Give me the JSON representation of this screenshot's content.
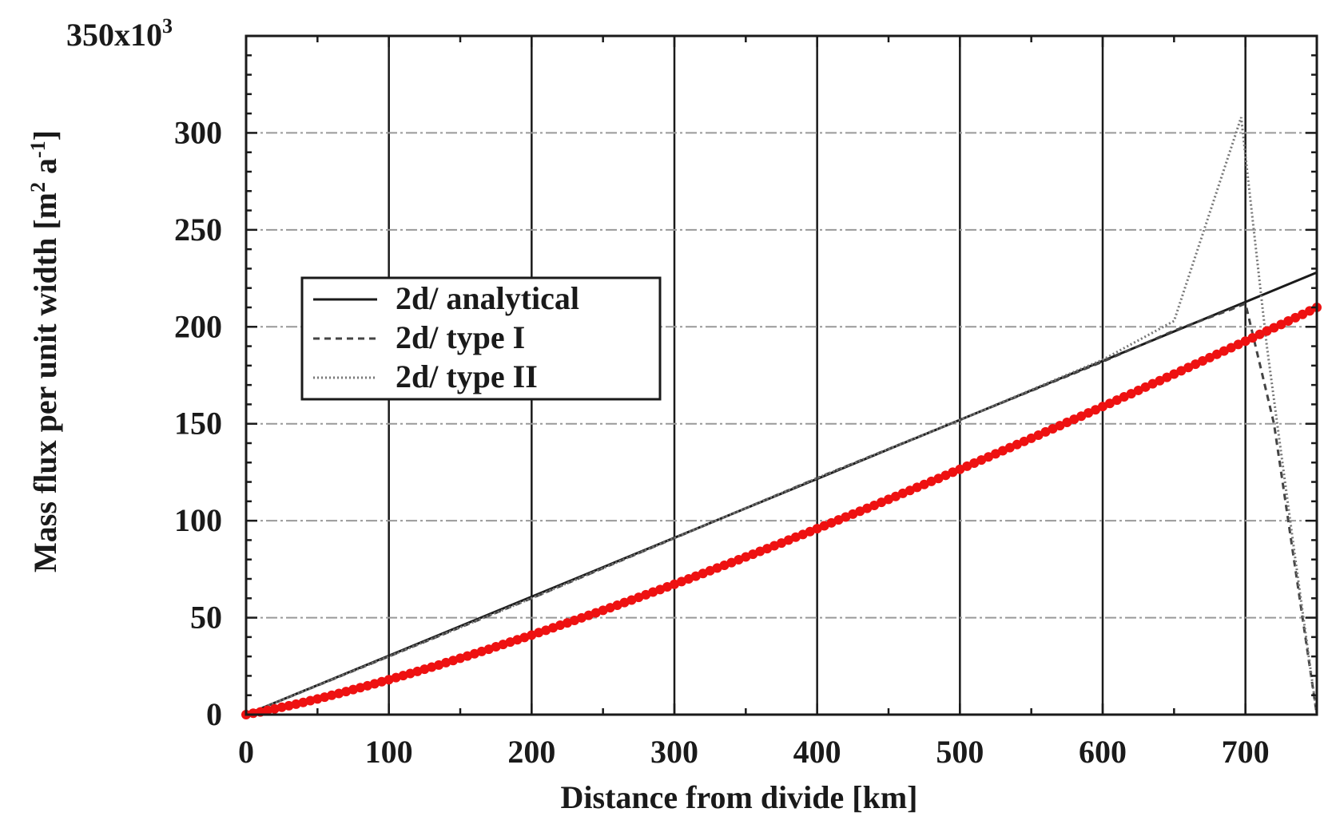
{
  "chart_data": {
    "type": "line",
    "title": "",
    "xlabel": "Distance from divide   [km]",
    "ylabel": "Mass flux per unit width  [m",
    "ylabel_sup1": "2",
    "ylabel_mid": " a",
    "ylabel_sup2": "-1",
    "ylabel_end": "]",
    "y_top_label": "350x10",
    "y_top_label_sup": "3",
    "xlim": [
      0,
      750
    ],
    "ylim": [
      0,
      350000
    ],
    "xticks": [
      0,
      100,
      200,
      300,
      400,
      500,
      600,
      700
    ],
    "yticks": [
      0,
      50,
      100,
      150,
      200,
      250,
      300
    ],
    "grid": true,
    "legend_position": "upper-left",
    "series": [
      {
        "name": "2d/ analytical",
        "style": "solid",
        "color": "#1a1a1a",
        "x": [
          0,
          750
        ],
        "y": [
          0,
          228000
        ]
      },
      {
        "name": "2d/ type I",
        "style": "dashed",
        "color": "#444444",
        "x": [
          0,
          100,
          200,
          300,
          400,
          500,
          600,
          650,
          690,
          700,
          720,
          740,
          750
        ],
        "y": [
          0,
          30000,
          60000,
          91000,
          122000,
          152000,
          182000,
          198000,
          209000,
          212000,
          150000,
          50000,
          0
        ]
      },
      {
        "name": "2d/ type II",
        "style": "dotted",
        "color": "#777777",
        "x": [
          0,
          100,
          200,
          300,
          400,
          500,
          600,
          650,
          697,
          715,
          735,
          750
        ],
        "y": [
          0,
          30000,
          60000,
          91000,
          122000,
          152000,
          183000,
          203000,
          308000,
          190000,
          80000,
          0
        ]
      },
      {
        "name": "",
        "style": "markers",
        "color": "#ee1111",
        "x": [
          0,
          5,
          10,
          15,
          20,
          25,
          30,
          35,
          40,
          45,
          50,
          55,
          60,
          65,
          70,
          75,
          80,
          85,
          90,
          95,
          100,
          105,
          110,
          115,
          120,
          125,
          130,
          135,
          140,
          145,
          150,
          155,
          160,
          165,
          170,
          175,
          180,
          185,
          190,
          195,
          200,
          205,
          210,
          215,
          220,
          225,
          230,
          235,
          240,
          245,
          250,
          255,
          260,
          265,
          270,
          275,
          280,
          285,
          290,
          295,
          300,
          305,
          310,
          315,
          320,
          325,
          330,
          335,
          340,
          345,
          350,
          355,
          360,
          365,
          370,
          375,
          380,
          385,
          390,
          395,
          400,
          405,
          410,
          415,
          420,
          425,
          430,
          435,
          440,
          445,
          450,
          455,
          460,
          465,
          470,
          475,
          480,
          485,
          490,
          495,
          500,
          505,
          510,
          515,
          520,
          525,
          530,
          535,
          540,
          545,
          550,
          555,
          560,
          565,
          570,
          575,
          580,
          585,
          590,
          595,
          600,
          605,
          610,
          615,
          620,
          625,
          630,
          635,
          640,
          645,
          650,
          655,
          660,
          665,
          670,
          675,
          680,
          685,
          690,
          695,
          700,
          705,
          710,
          715,
          720,
          725,
          730,
          735,
          740,
          745,
          750
        ],
        "y": [
          0,
          700,
          1400,
          2200,
          3000,
          3800,
          4600,
          5400,
          6300,
          7200,
          8100,
          9000,
          10000,
          10900,
          11900,
          12900,
          13900,
          14900,
          15900,
          17000,
          18000,
          19100,
          20100,
          21200,
          22300,
          23400,
          24500,
          25600,
          26800,
          27900,
          29100,
          30200,
          31400,
          32600,
          33700,
          35000,
          36200,
          37400,
          38600,
          39800,
          41000,
          42300,
          43500,
          44800,
          46100,
          47300,
          48600,
          49900,
          51200,
          52500,
          53800,
          55100,
          56400,
          57800,
          59100,
          60500,
          61800,
          63200,
          64500,
          65900,
          67200,
          68600,
          70000,
          71400,
          72800,
          74200,
          75600,
          77000,
          78400,
          79900,
          81300,
          82700,
          84200,
          85600,
          87100,
          88500,
          90000,
          91500,
          92900,
          94400,
          95900,
          97400,
          98900,
          100400,
          101900,
          103400,
          104900,
          106400,
          107900,
          109500,
          111000,
          112500,
          114100,
          115600,
          117200,
          118700,
          120300,
          121800,
          123400,
          125000,
          126500,
          128100,
          129700,
          131300,
          132900,
          134500,
          136100,
          137700,
          139300,
          140900,
          142500,
          144100,
          145800,
          147400,
          149000,
          150700,
          152300,
          153900,
          155600,
          157200,
          158900,
          160500,
          162200,
          163900,
          165500,
          167200,
          168900,
          170600,
          172200,
          173900,
          175600,
          177300,
          179000,
          180700,
          182400,
          184100,
          185800,
          187500,
          189200,
          190900,
          192600,
          194300,
          196100,
          197800,
          199500,
          201200,
          203000,
          204700,
          206400,
          208200,
          210000
        ]
      }
    ]
  }
}
